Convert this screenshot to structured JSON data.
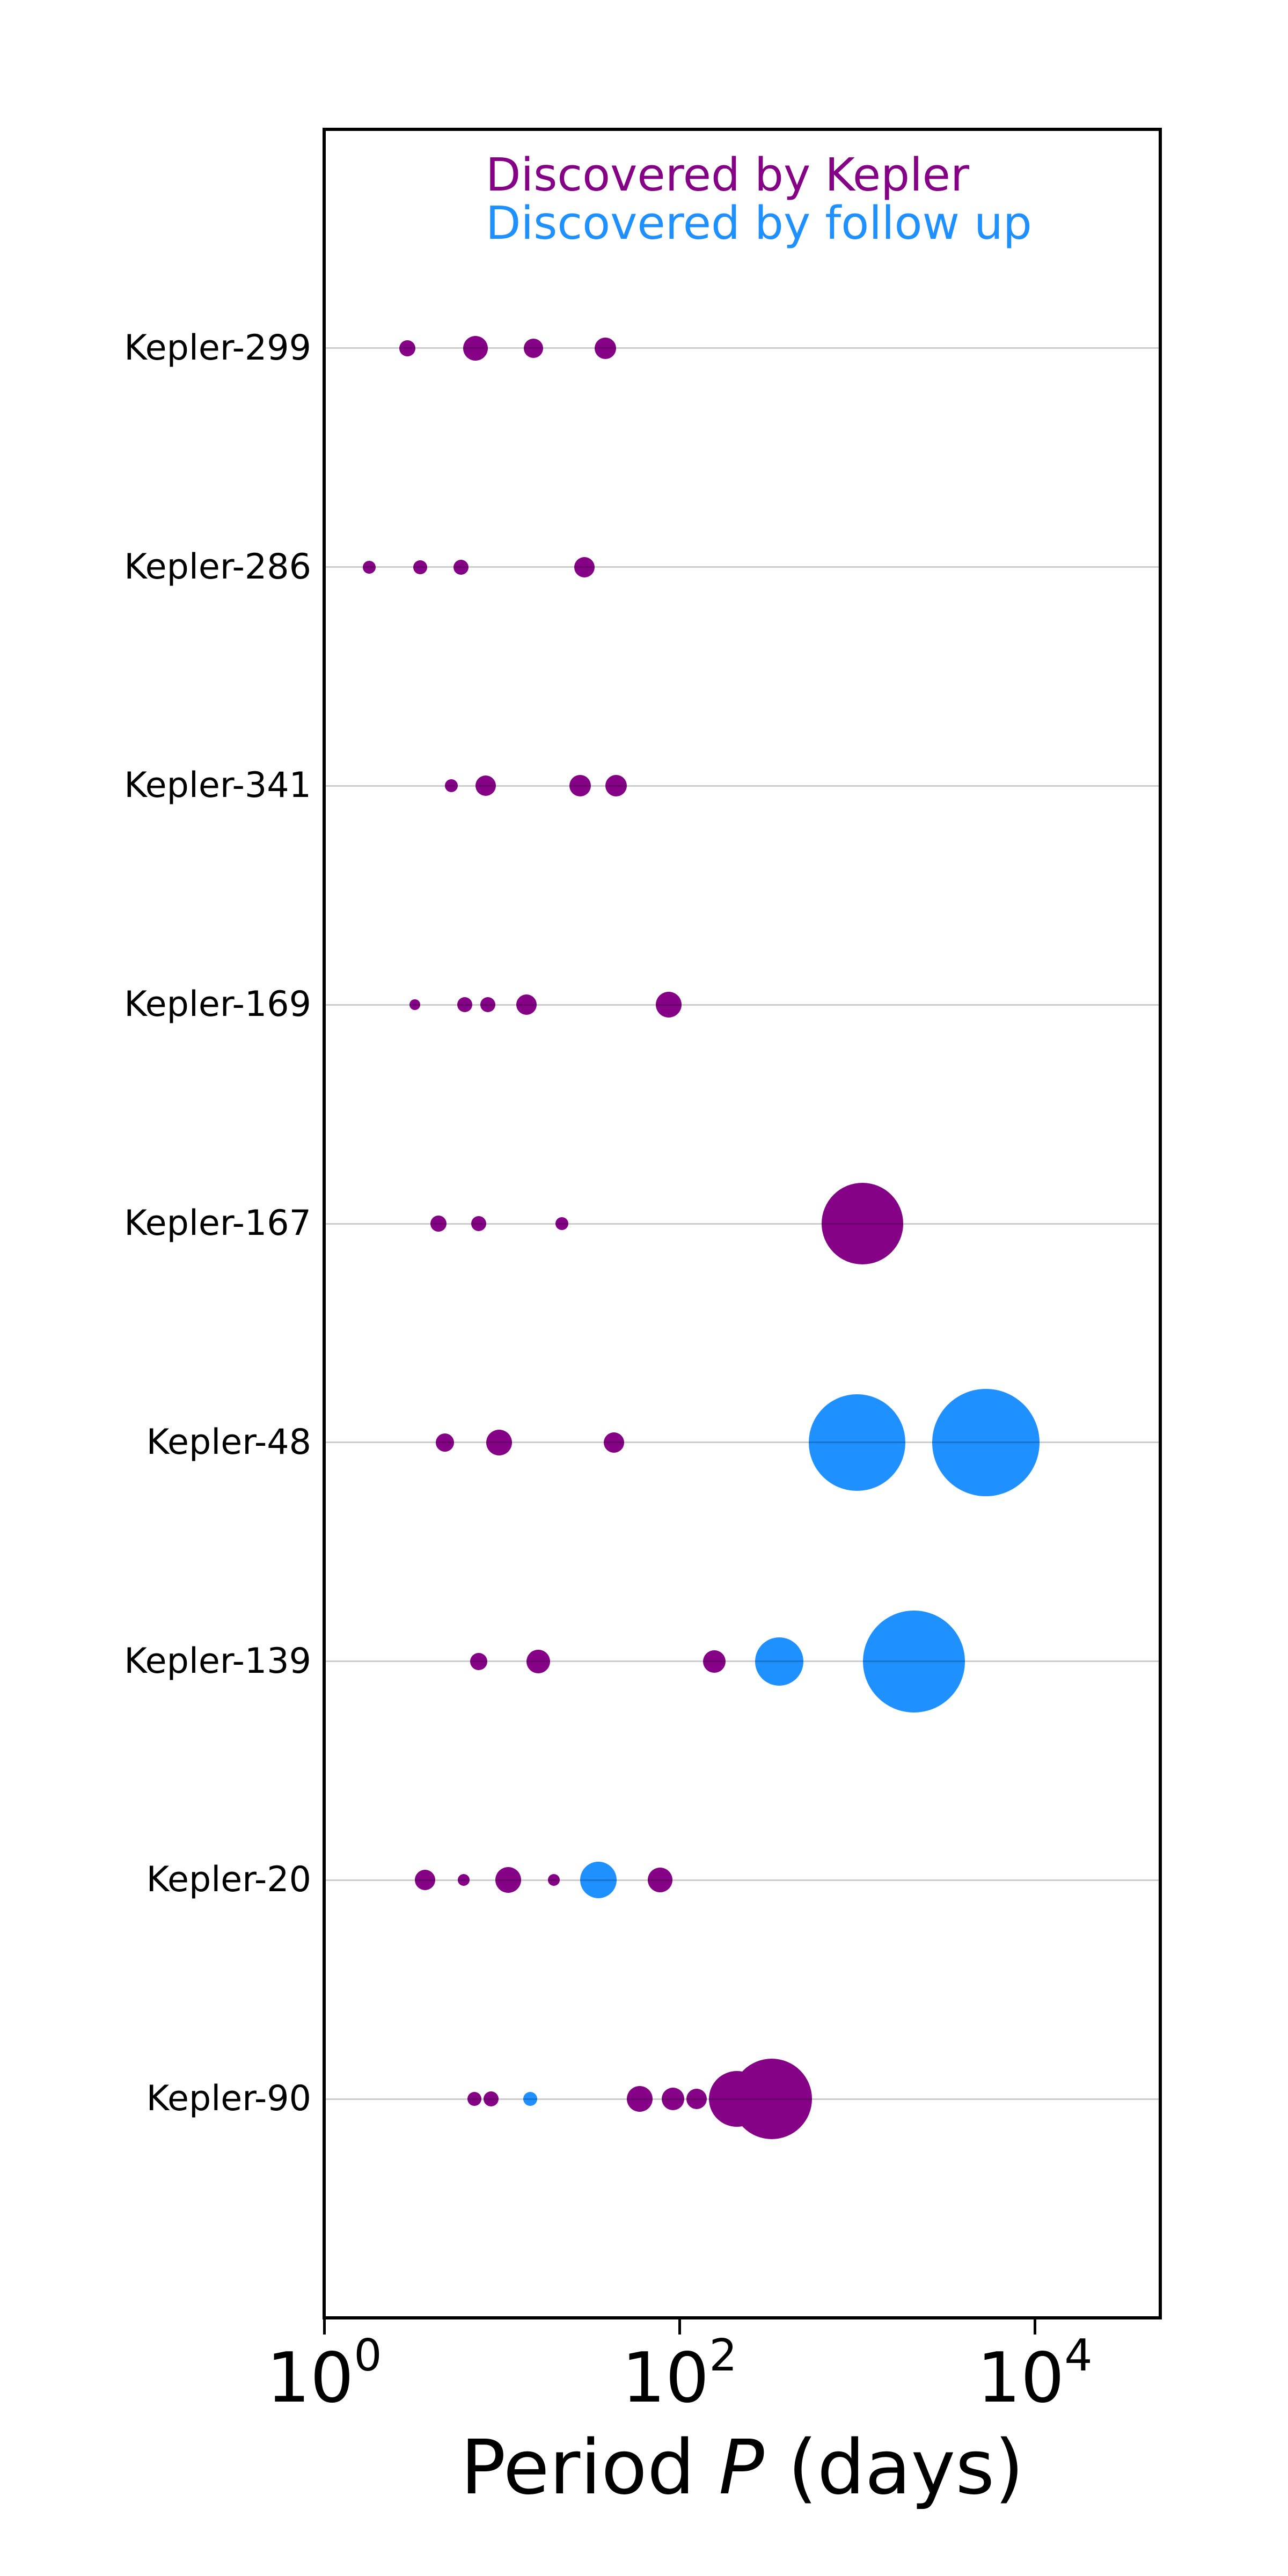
{
  "chart_data": {
    "type": "scatter",
    "title": "",
    "xlabel": "Period P (days)",
    "xlabel_parts": {
      "prefix": "Period ",
      "variable": "P",
      "suffix": " (days)"
    },
    "x_scale": "log",
    "x_range": [
      1,
      51000
    ],
    "x_ticks": [
      {
        "base": "10",
        "exp": "0",
        "value": 1
      },
      {
        "base": "10",
        "exp": "2",
        "value": 100
      },
      {
        "base": "10",
        "exp": "4",
        "value": 10000
      }
    ],
    "grid": "horizontal-row-lines",
    "legend_position": "top-center-inside",
    "legend": [
      {
        "label": "Discovered by Kepler",
        "key": "kepler",
        "color": "#850185"
      },
      {
        "label": "Discovered by follow up",
        "key": "followup",
        "color": "#1E90FF"
      }
    ],
    "colors": {
      "kepler": "#850185",
      "followup": "#1E90FF"
    },
    "bubble_size_meaning": "relative planet size",
    "systems": [
      {
        "name": "Kepler-299",
        "planets": [
          {
            "period_days": 2.93,
            "discovered_by": "kepler",
            "radius_px": 15
          },
          {
            "period_days": 7.11,
            "discovered_by": "kepler",
            "radius_px": 23
          },
          {
            "period_days": 15.05,
            "discovered_by": "kepler",
            "radius_px": 18
          },
          {
            "period_days": 38.28,
            "discovered_by": "kepler",
            "radius_px": 20
          }
        ]
      },
      {
        "name": "Kepler-286",
        "planets": [
          {
            "period_days": 1.8,
            "discovered_by": "kepler",
            "radius_px": 12
          },
          {
            "period_days": 3.47,
            "discovered_by": "kepler",
            "radius_px": 13
          },
          {
            "period_days": 5.91,
            "discovered_by": "kepler",
            "radius_px": 14
          },
          {
            "period_days": 29.22,
            "discovered_by": "kepler",
            "radius_px": 19
          }
        ]
      },
      {
        "name": "Kepler-341",
        "planets": [
          {
            "period_days": 5.2,
            "discovered_by": "kepler",
            "radius_px": 12
          },
          {
            "period_days": 8.1,
            "discovered_by": "kepler",
            "radius_px": 19
          },
          {
            "period_days": 27.66,
            "discovered_by": "kepler",
            "radius_px": 20
          },
          {
            "period_days": 44.0,
            "discovered_by": "kepler",
            "radius_px": 20
          }
        ]
      },
      {
        "name": "Kepler-169",
        "planets": [
          {
            "period_days": 3.25,
            "discovered_by": "kepler",
            "radius_px": 10
          },
          {
            "period_days": 6.2,
            "discovered_by": "kepler",
            "radius_px": 14
          },
          {
            "period_days": 8.35,
            "discovered_by": "kepler",
            "radius_px": 14
          },
          {
            "period_days": 13.77,
            "discovered_by": "kepler",
            "radius_px": 19
          },
          {
            "period_days": 87.09,
            "discovered_by": "kepler",
            "radius_px": 24
          }
        ]
      },
      {
        "name": "Kepler-167",
        "planets": [
          {
            "period_days": 4.39,
            "discovered_by": "kepler",
            "radius_px": 15
          },
          {
            "period_days": 7.41,
            "discovered_by": "kepler",
            "radius_px": 14
          },
          {
            "period_days": 21.8,
            "discovered_by": "kepler",
            "radius_px": 12
          },
          {
            "period_days": 1071,
            "discovered_by": "kepler",
            "radius_px": 76
          }
        ]
      },
      {
        "name": "Kepler-48",
        "planets": [
          {
            "period_days": 4.78,
            "discovered_by": "kepler",
            "radius_px": 17
          },
          {
            "period_days": 9.67,
            "discovered_by": "kepler",
            "radius_px": 24
          },
          {
            "period_days": 42.9,
            "discovered_by": "kepler",
            "radius_px": 19
          },
          {
            "period_days": 1001,
            "discovered_by": "followup",
            "radius_px": 90
          },
          {
            "period_days": 5300,
            "discovered_by": "followup",
            "radius_px": 100
          }
        ]
      },
      {
        "name": "Kepler-139",
        "planets": [
          {
            "period_days": 7.4,
            "discovered_by": "kepler",
            "radius_px": 16
          },
          {
            "period_days": 16.1,
            "discovered_by": "kepler",
            "radius_px": 22
          },
          {
            "period_days": 157.0,
            "discovered_by": "kepler",
            "radius_px": 21
          },
          {
            "period_days": 365,
            "discovered_by": "followup",
            "radius_px": 45
          },
          {
            "period_days": 2090,
            "discovered_by": "followup",
            "radius_px": 95
          }
        ]
      },
      {
        "name": "Kepler-20",
        "planets": [
          {
            "period_days": 3.7,
            "discovered_by": "kepler",
            "radius_px": 19
          },
          {
            "period_days": 6.1,
            "discovered_by": "kepler",
            "radius_px": 11
          },
          {
            "period_days": 10.85,
            "discovered_by": "kepler",
            "radius_px": 24
          },
          {
            "period_days": 19.58,
            "discovered_by": "kepler",
            "radius_px": 11
          },
          {
            "period_days": 34.94,
            "discovered_by": "followup",
            "radius_px": 34
          },
          {
            "period_days": 77.61,
            "discovered_by": "kepler",
            "radius_px": 23
          }
        ]
      },
      {
        "name": "Kepler-90",
        "planets": [
          {
            "period_days": 7.01,
            "discovered_by": "kepler",
            "radius_px": 13
          },
          {
            "period_days": 8.72,
            "discovered_by": "kepler",
            "radius_px": 14
          },
          {
            "period_days": 14.45,
            "discovered_by": "followup",
            "radius_px": 13
          },
          {
            "period_days": 59.74,
            "discovered_by": "kepler",
            "radius_px": 24
          },
          {
            "period_days": 91.94,
            "discovered_by": "kepler",
            "radius_px": 21
          },
          {
            "period_days": 124.91,
            "discovered_by": "kepler",
            "radius_px": 19
          },
          {
            "period_days": 210.6,
            "discovered_by": "kepler",
            "radius_px": 52
          },
          {
            "period_days": 331.6,
            "discovered_by": "kepler",
            "radius_px": 75
          }
        ]
      }
    ]
  }
}
